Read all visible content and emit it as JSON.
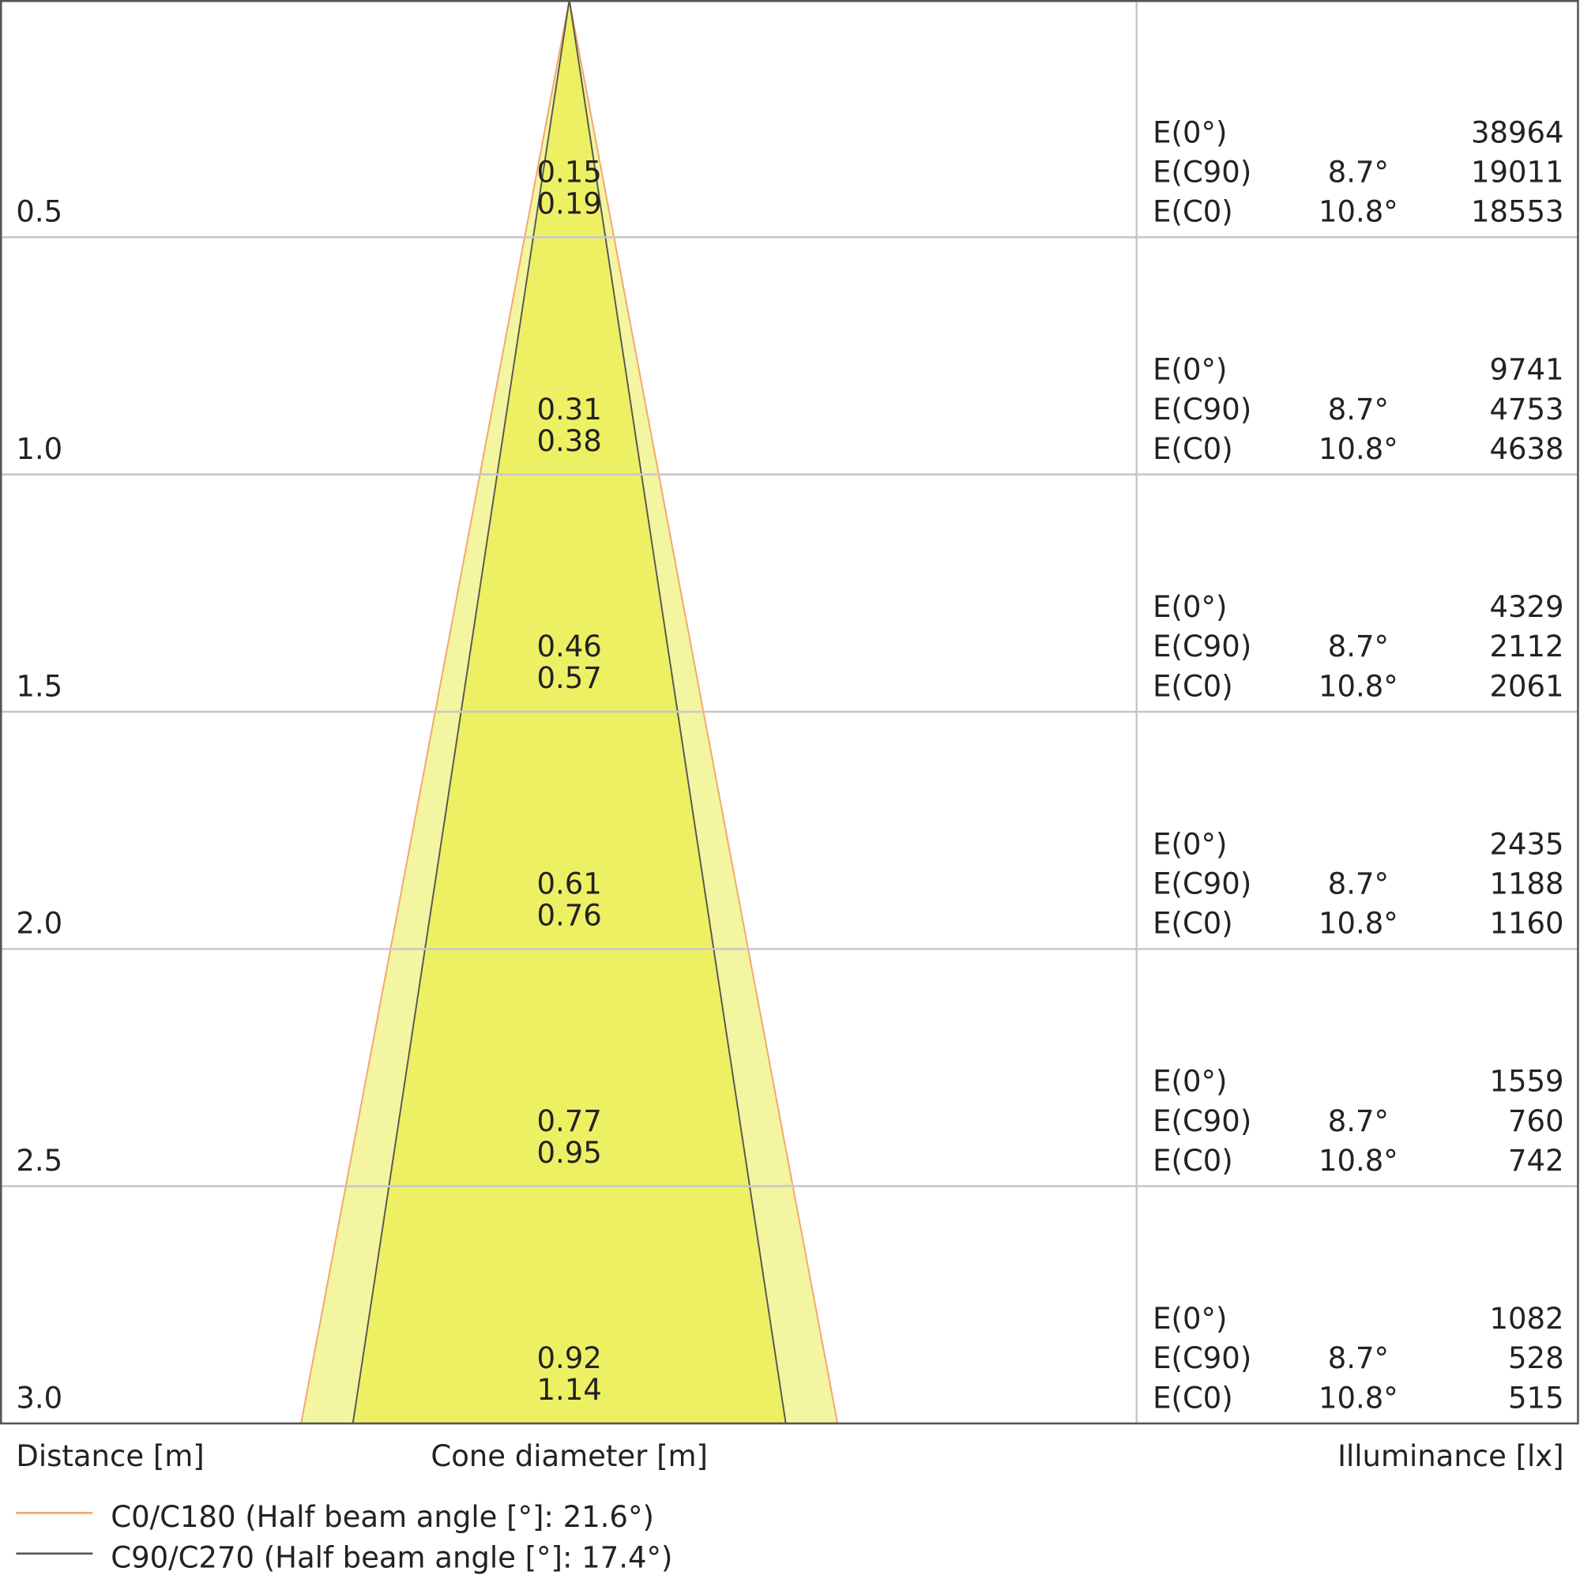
{
  "rows": [
    {
      "distance": "0.5",
      "c90": 0.15,
      "c0": 0.19,
      "e0": 38964,
      "ec90": 19011,
      "ec0": 18553
    },
    {
      "distance": "1.0",
      "c90": 0.31,
      "c0": 0.38,
      "e0": 9741,
      "ec90": 4753,
      "ec0": 4638
    },
    {
      "distance": "1.5",
      "c90": 0.46,
      "c0": 0.57,
      "e0": 4329,
      "ec90": 2112,
      "ec0": 2061
    },
    {
      "distance": "2.0",
      "c90": 0.61,
      "c0": 0.76,
      "e0": 2435,
      "ec90": 1188,
      "ec0": 1160
    },
    {
      "distance": "2.5",
      "c90": 0.77,
      "c0": 0.95,
      "e0": 1559,
      "ec90": 760,
      "ec0": 742
    },
    {
      "distance": "3.0",
      "c90": 0.92,
      "c0": 1.14,
      "e0": 1082,
      "ec90": 528,
      "ec0": 515
    }
  ],
  "row_labels": {
    "e0": "E(0°)",
    "ec90": "E(C90)",
    "ec0": "E(C0)"
  },
  "angles": {
    "c90": "8.7°",
    "c0": "10.8°"
  },
  "axis_labels": {
    "distance": "Distance [m]",
    "cone": "Cone diameter [m]",
    "illuminance": "Illuminance [lx]"
  },
  "legend": [
    {
      "label": "C0/C180 (Half beam angle [°]: 21.6°)",
      "color": "#f4a46a"
    },
    {
      "label": "C90/C270 (Half beam angle [°]: 17.4°)",
      "color": "#555555"
    }
  ]
}
